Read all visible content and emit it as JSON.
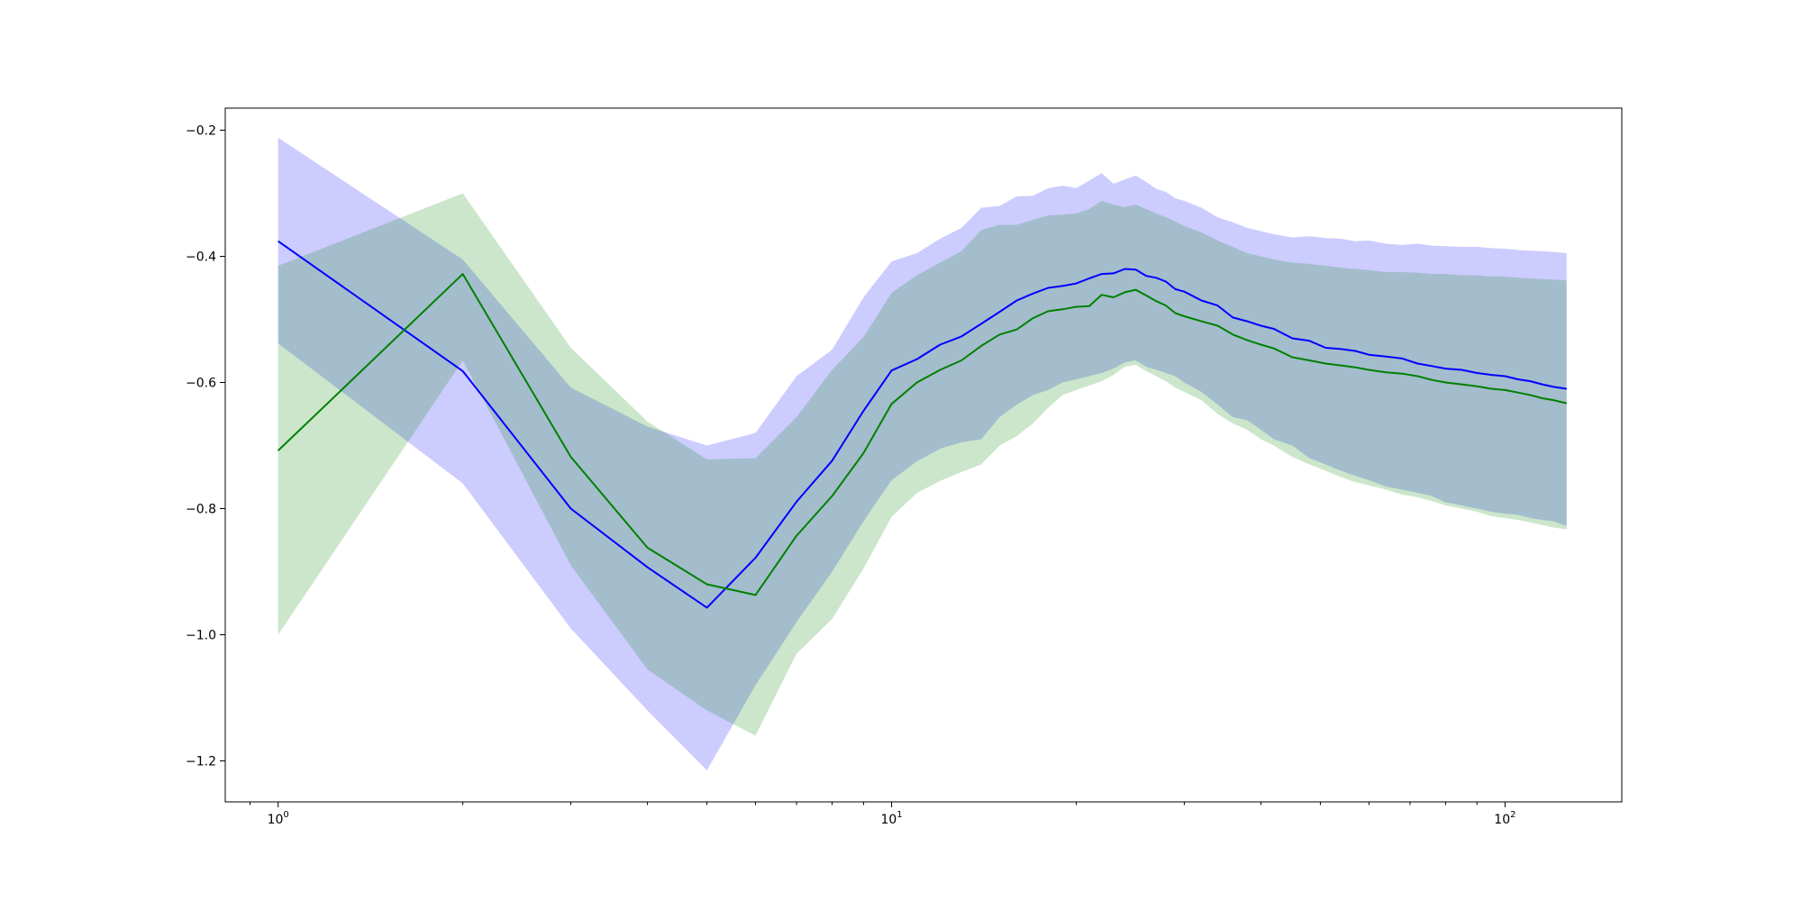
{
  "chart_data": {
    "type": "line",
    "title": "",
    "xlabel": "",
    "ylabel": "",
    "xscale": "log",
    "xlim": [
      0.82,
      155
    ],
    "ylim": [
      -1.265,
      -0.165
    ],
    "grid": false,
    "legend": "none",
    "x": [
      1,
      2,
      3,
      4,
      5,
      6,
      7,
      8,
      9,
      10,
      11,
      12,
      13,
      14,
      15,
      16,
      17,
      18,
      19,
      20,
      21,
      22,
      23,
      24,
      25,
      26,
      27,
      28,
      29,
      30,
      32,
      34,
      36,
      38,
      40,
      42,
      45,
      48,
      51,
      54,
      57,
      60,
      64,
      68,
      72,
      76,
      80,
      85,
      90,
      95,
      100,
      105,
      110,
      115,
      120,
      126
    ],
    "series": [
      {
        "color": "#0000ff",
        "band_color": "#0000ff",
        "values": [
          -0.376,
          -0.582,
          -0.8,
          -0.893,
          -0.957,
          -0.878,
          -0.789,
          -0.724,
          -0.645,
          -0.581,
          -0.563,
          -0.54,
          -0.527,
          -0.507,
          -0.488,
          -0.47,
          -0.459,
          -0.45,
          -0.447,
          -0.443,
          -0.435,
          -0.428,
          -0.427,
          -0.42,
          -0.421,
          -0.431,
          -0.434,
          -0.44,
          -0.452,
          -0.456,
          -0.47,
          -0.478,
          -0.497,
          -0.503,
          -0.51,
          -0.515,
          -0.53,
          -0.534,
          -0.545,
          -0.547,
          -0.55,
          -0.556,
          -0.559,
          -0.562,
          -0.57,
          -0.574,
          -0.578,
          -0.58,
          -0.585,
          -0.588,
          -0.59,
          -0.595,
          -0.598,
          -0.603,
          -0.607,
          -0.61
        ],
        "lower": [
          -0.538,
          -0.76,
          -0.99,
          -1.12,
          -1.215,
          -1.08,
          -0.98,
          -0.9,
          -0.82,
          -0.755,
          -0.725,
          -0.705,
          -0.695,
          -0.69,
          -0.655,
          -0.635,
          -0.62,
          -0.612,
          -0.6,
          -0.595,
          -0.59,
          -0.585,
          -0.578,
          -0.568,
          -0.565,
          -0.575,
          -0.58,
          -0.585,
          -0.59,
          -0.6,
          -0.615,
          -0.635,
          -0.655,
          -0.66,
          -0.675,
          -0.69,
          -0.7,
          -0.72,
          -0.73,
          -0.74,
          -0.748,
          -0.755,
          -0.765,
          -0.77,
          -0.775,
          -0.78,
          -0.79,
          -0.795,
          -0.8,
          -0.805,
          -0.808,
          -0.81,
          -0.815,
          -0.818,
          -0.82,
          -0.828
        ],
        "upper": [
          -0.212,
          -0.405,
          -0.608,
          -0.67,
          -0.7,
          -0.68,
          -0.59,
          -0.548,
          -0.465,
          -0.408,
          -0.395,
          -0.372,
          -0.355,
          -0.323,
          -0.32,
          -0.305,
          -0.304,
          -0.292,
          -0.288,
          -0.292,
          -0.28,
          -0.268,
          -0.285,
          -0.278,
          -0.272,
          -0.282,
          -0.293,
          -0.298,
          -0.308,
          -0.312,
          -0.323,
          -0.338,
          -0.346,
          -0.355,
          -0.36,
          -0.365,
          -0.37,
          -0.368,
          -0.371,
          -0.372,
          -0.376,
          -0.375,
          -0.38,
          -0.382,
          -0.38,
          -0.383,
          -0.384,
          -0.385,
          -0.385,
          -0.387,
          -0.388,
          -0.39,
          -0.391,
          -0.392,
          -0.393,
          -0.395
        ]
      },
      {
        "color": "#008000",
        "band_color": "#008000",
        "values": [
          -0.708,
          -0.428,
          -0.718,
          -0.862,
          -0.92,
          -0.937,
          -0.843,
          -0.78,
          -0.712,
          -0.634,
          -0.6,
          -0.58,
          -0.565,
          -0.542,
          -0.524,
          -0.516,
          -0.498,
          -0.487,
          -0.484,
          -0.48,
          -0.479,
          -0.461,
          -0.465,
          -0.457,
          -0.453,
          -0.462,
          -0.471,
          -0.478,
          -0.49,
          -0.495,
          -0.503,
          -0.51,
          -0.524,
          -0.533,
          -0.54,
          -0.546,
          -0.56,
          -0.565,
          -0.57,
          -0.573,
          -0.576,
          -0.58,
          -0.584,
          -0.586,
          -0.59,
          -0.596,
          -0.6,
          -0.603,
          -0.606,
          -0.61,
          -0.612,
          -0.616,
          -0.62,
          -0.625,
          -0.628,
          -0.633
        ],
        "lower": [
          -1.0,
          -0.565,
          -0.89,
          -1.055,
          -1.12,
          -1.16,
          -1.03,
          -0.975,
          -0.895,
          -0.813,
          -0.775,
          -0.756,
          -0.742,
          -0.73,
          -0.7,
          -0.685,
          -0.665,
          -0.64,
          -0.62,
          -0.612,
          -0.605,
          -0.598,
          -0.588,
          -0.575,
          -0.572,
          -0.582,
          -0.59,
          -0.598,
          -0.608,
          -0.615,
          -0.628,
          -0.65,
          -0.665,
          -0.675,
          -0.69,
          -0.7,
          -0.718,
          -0.73,
          -0.74,
          -0.75,
          -0.758,
          -0.763,
          -0.77,
          -0.778,
          -0.782,
          -0.788,
          -0.795,
          -0.8,
          -0.805,
          -0.812,
          -0.815,
          -0.818,
          -0.822,
          -0.826,
          -0.83,
          -0.833
        ],
        "upper": [
          -0.415,
          -0.3,
          -0.545,
          -0.662,
          -0.722,
          -0.72,
          -0.655,
          -0.58,
          -0.528,
          -0.458,
          -0.43,
          -0.41,
          -0.392,
          -0.358,
          -0.35,
          -0.35,
          -0.342,
          -0.335,
          -0.334,
          -0.332,
          -0.325,
          -0.312,
          -0.318,
          -0.322,
          -0.318,
          -0.325,
          -0.332,
          -0.338,
          -0.345,
          -0.352,
          -0.362,
          -0.375,
          -0.385,
          -0.395,
          -0.4,
          -0.405,
          -0.41,
          -0.412,
          -0.415,
          -0.418,
          -0.42,
          -0.422,
          -0.425,
          -0.425,
          -0.426,
          -0.428,
          -0.428,
          -0.43,
          -0.43,
          -0.432,
          -0.432,
          -0.434,
          -0.435,
          -0.436,
          -0.437,
          -0.438
        ]
      }
    ],
    "yticks": [
      -1.2,
      -1.0,
      -0.8,
      -0.6,
      -0.4,
      -0.2
    ],
    "ytick_labels": [
      "−1.2",
      "−1.0",
      "−0.8",
      "−0.6",
      "−0.4",
      "−0.2"
    ],
    "xticks_major": [
      1,
      10,
      100
    ],
    "xtick_labels": [
      {
        "base": "10",
        "exp": "0"
      },
      {
        "base": "10",
        "exp": "1"
      },
      {
        "base": "10",
        "exp": "2"
      }
    ]
  }
}
